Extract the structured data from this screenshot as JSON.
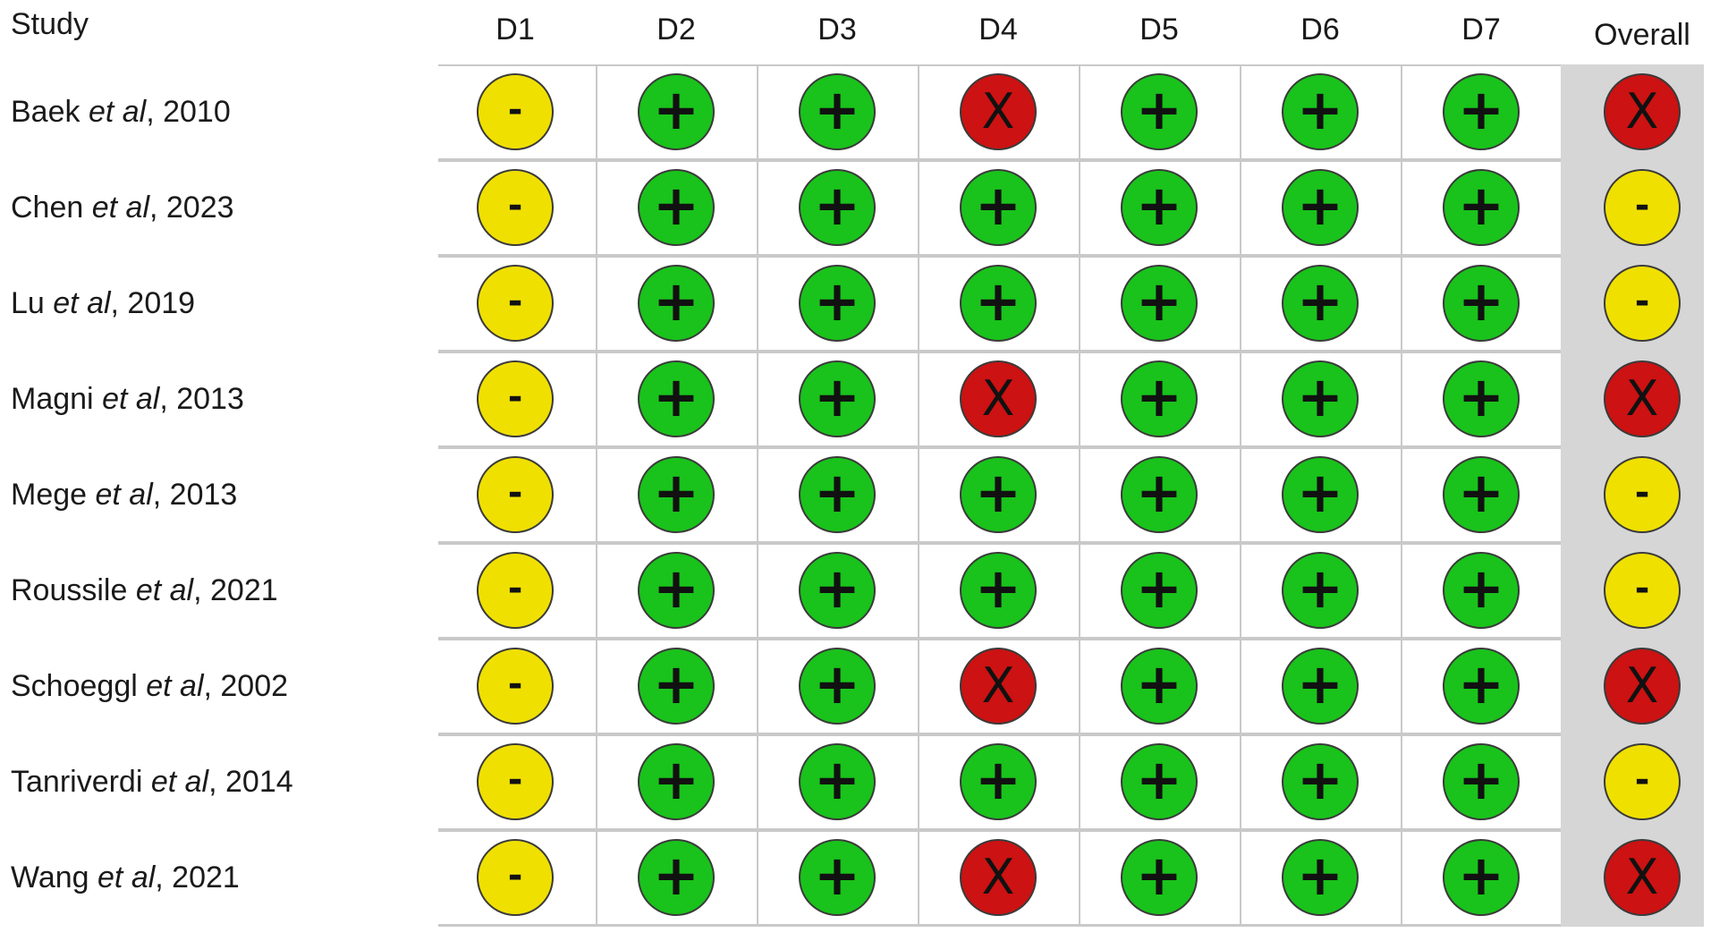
{
  "table": {
    "study_header": "Study",
    "domains": [
      "D1",
      "D2",
      "D3",
      "D4",
      "D5",
      "D6",
      "D7"
    ],
    "overall_header": "Overall",
    "rows": [
      {
        "author": "Baek",
        "etal": "et al",
        "year": ", 2010",
        "judgements": [
          "some",
          "low",
          "low",
          "high",
          "low",
          "low",
          "low"
        ],
        "overall": "high"
      },
      {
        "author": "Chen",
        "etal": "et al",
        "year": ", 2023",
        "judgements": [
          "some",
          "low",
          "low",
          "low",
          "low",
          "low",
          "low"
        ],
        "overall": "some"
      },
      {
        "author": "Lu",
        "etal": "et al",
        "year": ", 2019",
        "judgements": [
          "some",
          "low",
          "low",
          "low",
          "low",
          "low",
          "low"
        ],
        "overall": "some"
      },
      {
        "author": "Magni",
        "etal": "et al",
        "year": ", 2013",
        "judgements": [
          "some",
          "low",
          "low",
          "high",
          "low",
          "low",
          "low"
        ],
        "overall": "high"
      },
      {
        "author": "Mege",
        "etal": "et al",
        "year": ", 2013",
        "judgements": [
          "some",
          "low",
          "low",
          "low",
          "low",
          "low",
          "low"
        ],
        "overall": "some"
      },
      {
        "author": "Roussile",
        "etal": "et al",
        "year": ", 2021",
        "judgements": [
          "some",
          "low",
          "low",
          "low",
          "low",
          "low",
          "low"
        ],
        "overall": "some"
      },
      {
        "author": "Schoeggl",
        "etal": "et al",
        "year": ", 2002",
        "judgements": [
          "some",
          "low",
          "low",
          "high",
          "low",
          "low",
          "low"
        ],
        "overall": "high"
      },
      {
        "author": "Tanriverdi",
        "etal": "et al",
        "year": ", 2014",
        "judgements": [
          "some",
          "low",
          "low",
          "low",
          "low",
          "low",
          "low"
        ],
        "overall": "some"
      },
      {
        "author": "Wang",
        "etal": "et al",
        "year": ", 2021",
        "judgements": [
          "some",
          "low",
          "low",
          "high",
          "low",
          "low",
          "low"
        ],
        "overall": "high"
      }
    ]
  },
  "symbols": {
    "low": "+",
    "some": "-",
    "high": "X"
  },
  "colors": {
    "low": "#19c31b",
    "some": "#f0e000",
    "high": "#cc1212",
    "grid": "#c9c9c9",
    "overall_bg": "#d6d6d6"
  }
}
